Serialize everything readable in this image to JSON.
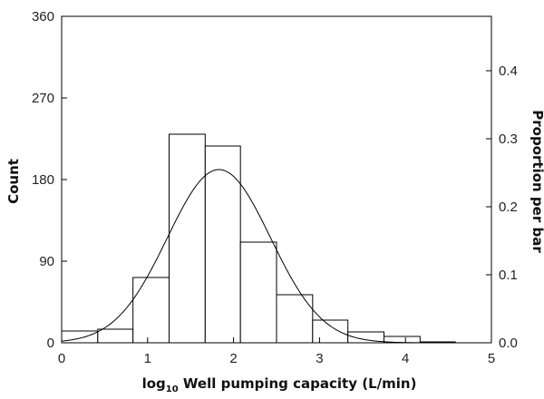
{
  "chart_data": {
    "type": "bar",
    "subtype": "histogram-with-normal-curve",
    "title": "",
    "xlabel_prefix": "log",
    "xlabel_subscript": "10",
    "xlabel_rest": " Well pumping capacity (L/min)",
    "ylabel_left": "Count",
    "ylabel_right": "Proportion per bar",
    "xlim": [
      0,
      5
    ],
    "ylim_left": [
      0,
      360
    ],
    "ylim_right": [
      0,
      0.48
    ],
    "x_ticks": [
      0,
      1,
      2,
      3,
      4,
      5
    ],
    "y_ticks_left": [
      0,
      90,
      180,
      270,
      360
    ],
    "y_ticks_right": [
      0.0,
      0.1,
      0.2,
      0.3,
      0.4
    ],
    "y_tick_labels_right": [
      "0.0",
      "0.1",
      "0.2",
      "0.3",
      "0.4"
    ],
    "bin_edges": [
      0,
      0.42,
      0.83,
      1.25,
      1.67,
      2.08,
      2.5,
      2.92,
      3.33,
      3.75,
      4.17,
      4.58,
      5
    ],
    "counts": [
      13,
      15,
      72,
      230,
      217,
      111,
      53,
      25,
      12,
      7,
      1,
      0
    ],
    "normal_curve": {
      "mean": 1.83,
      "sd": 0.6,
      "peak_count": 191
    },
    "grid": false,
    "legend": "none",
    "colors": {
      "bar_fill": "#ffffff",
      "bar_edge": "#000000",
      "curve": "#000000",
      "axis": "#000000"
    }
  }
}
